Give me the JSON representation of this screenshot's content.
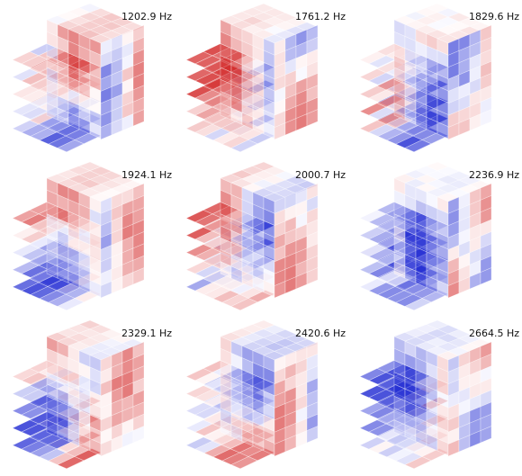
{
  "panels": [
    {
      "label": "1202.9 Hz"
    },
    {
      "label": "1761.2 Hz"
    },
    {
      "label": "1829.6 Hz"
    },
    {
      "label": "1924.1 Hz"
    },
    {
      "label": "2000.7 Hz"
    },
    {
      "label": "2236.9 Hz"
    },
    {
      "label": "2329.1 Hz"
    },
    {
      "label": "2420.6 Hz"
    },
    {
      "label": "2664.5 Hz"
    }
  ]
}
